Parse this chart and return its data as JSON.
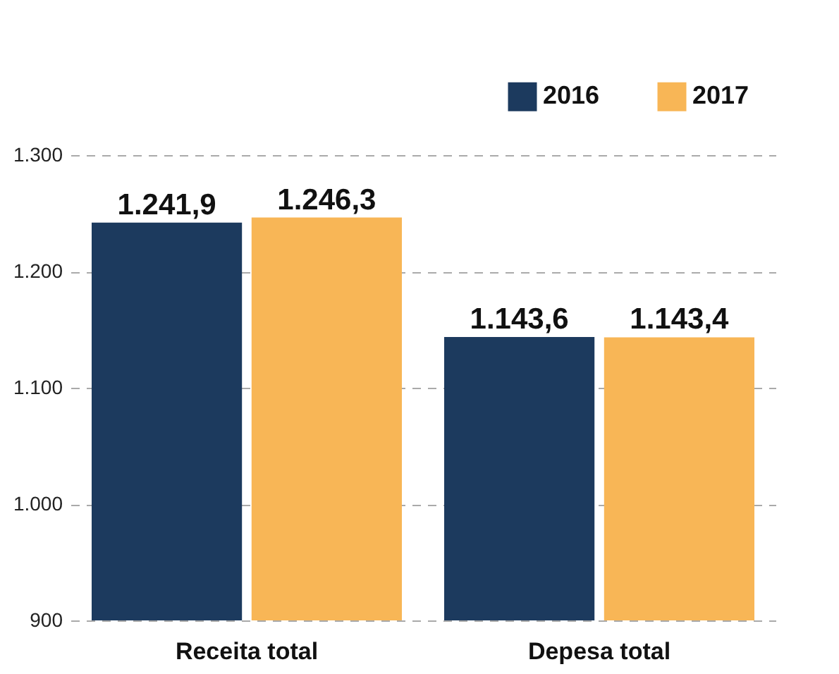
{
  "chart_data": {
    "type": "bar",
    "categories": [
      "Receita total",
      "Depesa total"
    ],
    "series": [
      {
        "name": "2016",
        "color": "#1c3a5e",
        "values": [
          1241.9,
          1143.6
        ],
        "value_labels": [
          "1.241,9",
          "1.143,6"
        ]
      },
      {
        "name": "2017",
        "color": "#f8b656",
        "values": [
          1246.3,
          1143.4
        ],
        "value_labels": [
          "1.246,3",
          "1.143,4"
        ]
      }
    ],
    "ylim": [
      900,
      1300
    ],
    "yticks": [
      {
        "value": 900,
        "label": "900"
      },
      {
        "value": 1000,
        "label": "1.000"
      },
      {
        "value": 1100,
        "label": "1.100"
      },
      {
        "value": 1200,
        "label": "1.200"
      },
      {
        "value": 1300,
        "label": "1.300"
      }
    ],
    "grid": "y",
    "legend": "top right"
  }
}
